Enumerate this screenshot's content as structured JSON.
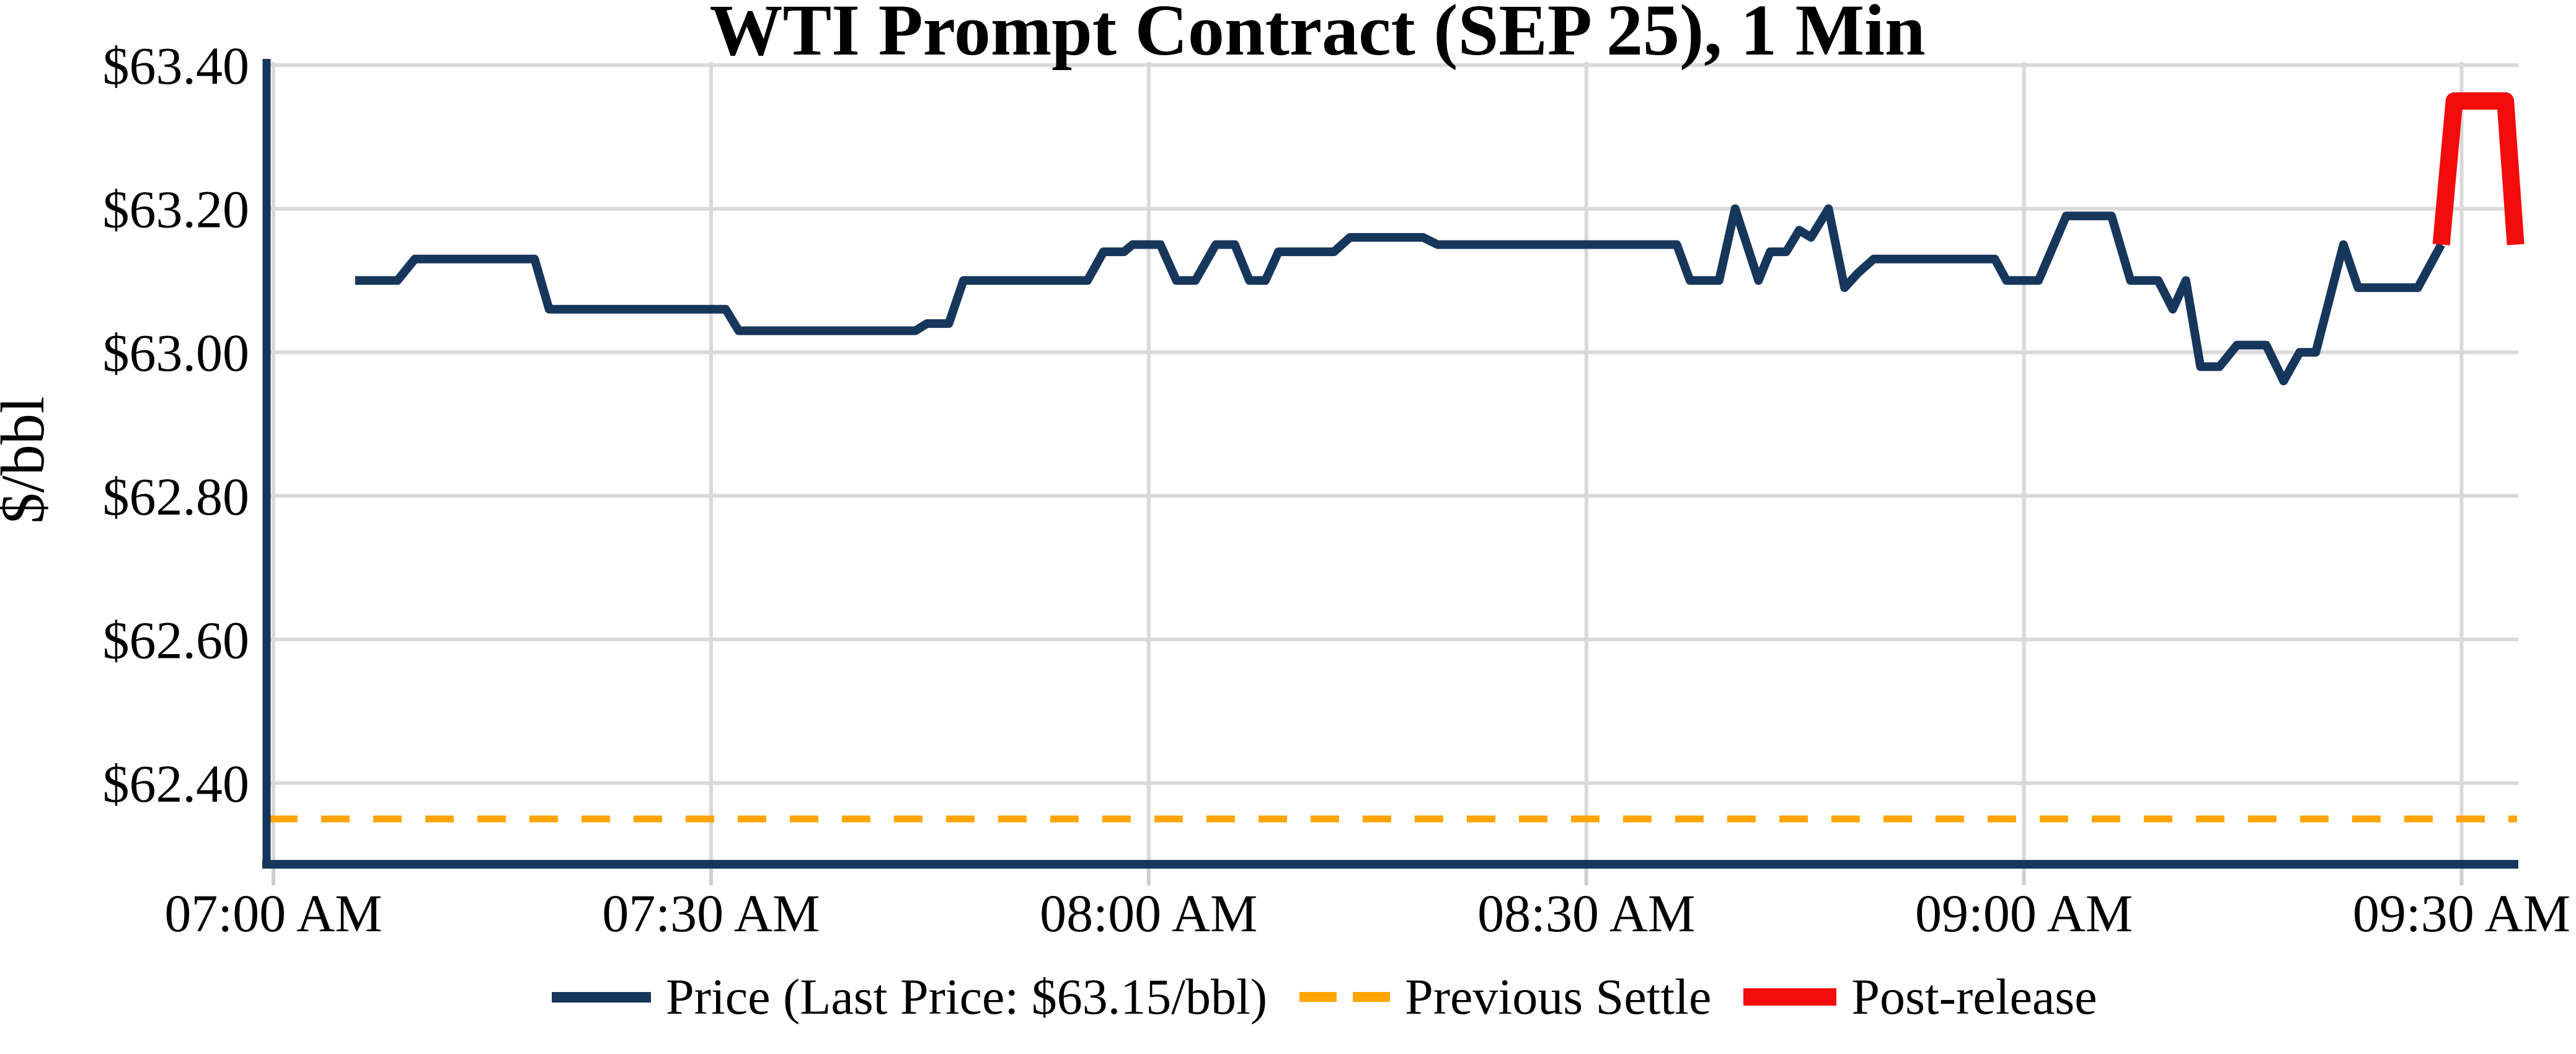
{
  "chart_data": {
    "type": "line",
    "title": "WTI Prompt Contract (SEP 25), 1 Min",
    "xlabel": "",
    "ylabel": "$/bbl",
    "grid": true,
    "legend_position": "bottom",
    "background_color": "#FFFFFF",
    "grid_color": "#D9D9D9",
    "tick_color": "#CFCFCF",
    "axis_color": "#17365C",
    "text_color": "#000000",
    "x_axis": {
      "unit": "minutes after 07:00 AM",
      "min": -0.5,
      "max": 153.9,
      "ticks": [
        {
          "minutes": 0,
          "label": "07:00 AM"
        },
        {
          "minutes": 30,
          "label": "07:30 AM"
        },
        {
          "minutes": 60,
          "label": "08:00 AM"
        },
        {
          "minutes": 90,
          "label": "08:30 AM"
        },
        {
          "minutes": 120,
          "label": "09:00 AM"
        },
        {
          "minutes": 150,
          "label": "09:30 AM"
        }
      ]
    },
    "y_axis": {
      "unit": "$/bbl",
      "min": 62.29,
      "max": 63.41,
      "ticks": [
        {
          "value": 63.4,
          "label": "$63.40"
        },
        {
          "value": 63.2,
          "label": "$63.20"
        },
        {
          "value": 63.0,
          "label": "$63.00"
        },
        {
          "value": 62.8,
          "label": "$62.80"
        },
        {
          "value": 62.6,
          "label": "$62.60"
        },
        {
          "value": 62.4,
          "label": "$62.40"
        }
      ]
    },
    "last_price": "$63.15/bbl",
    "previous_settle_value": 62.35,
    "series": [
      {
        "name": "Price (Last Price: $63.15/bbl)",
        "style": "solid",
        "color": "#17365C",
        "stroke_width": 14,
        "points": [
          [
            5.6,
            63.1
          ],
          [
            8.5,
            63.1
          ],
          [
            9.7,
            63.13
          ],
          [
            17.9,
            63.13
          ],
          [
            18.9,
            63.06
          ],
          [
            31.0,
            63.06
          ],
          [
            31.9,
            63.03
          ],
          [
            44.0,
            63.03
          ],
          [
            44.8,
            63.04
          ],
          [
            46.3,
            63.04
          ],
          [
            47.3,
            63.1
          ],
          [
            55.8,
            63.1
          ],
          [
            56.9,
            63.14
          ],
          [
            58.3,
            63.14
          ],
          [
            58.9,
            63.15
          ],
          [
            60.8,
            63.15
          ],
          [
            61.9,
            63.1
          ],
          [
            63.2,
            63.1
          ],
          [
            64.6,
            63.15
          ],
          [
            65.9,
            63.15
          ],
          [
            66.9,
            63.1
          ],
          [
            68.0,
            63.1
          ],
          [
            68.9,
            63.14
          ],
          [
            72.7,
            63.14
          ],
          [
            73.8,
            63.16
          ],
          [
            78.8,
            63.16
          ],
          [
            79.8,
            63.15
          ],
          [
            96.2,
            63.15
          ],
          [
            97.1,
            63.1
          ],
          [
            99.1,
            63.1
          ],
          [
            100.2,
            63.2
          ],
          [
            101.8,
            63.1
          ],
          [
            102.6,
            63.14
          ],
          [
            103.7,
            63.14
          ],
          [
            104.6,
            63.17
          ],
          [
            105.4,
            63.16
          ],
          [
            106.6,
            63.2
          ],
          [
            107.7,
            63.09
          ],
          [
            108.6,
            63.11
          ],
          [
            109.7,
            63.13
          ],
          [
            118.0,
            63.13
          ],
          [
            118.8,
            63.1
          ],
          [
            121.0,
            63.1
          ],
          [
            122.9,
            63.19
          ],
          [
            126.0,
            63.19
          ],
          [
            127.3,
            63.1
          ],
          [
            129.2,
            63.1
          ],
          [
            130.2,
            63.06
          ],
          [
            131.1,
            63.1
          ],
          [
            132.1,
            62.98
          ],
          [
            133.4,
            62.98
          ],
          [
            134.6,
            63.01
          ],
          [
            136.6,
            63.01
          ],
          [
            137.8,
            62.96
          ],
          [
            138.9,
            63.0
          ],
          [
            140.0,
            63.0
          ],
          [
            141.9,
            63.15
          ],
          [
            142.9,
            63.09
          ],
          [
            147.0,
            63.09
          ],
          [
            148.6,
            63.15
          ]
        ]
      },
      {
        "name": "Previous Settle",
        "style": "dashed",
        "color": "#FFA500",
        "stroke_width": 11,
        "points": [
          [
            -0.3,
            62.35
          ],
          [
            153.8,
            62.35
          ]
        ]
      },
      {
        "name": "Post-release",
        "style": "solid",
        "color": "#F40B0B",
        "stroke_width": 28,
        "points": [
          [
            148.6,
            63.15
          ],
          [
            149.5,
            63.35
          ],
          [
            153.0,
            63.35
          ],
          [
            153.7,
            63.15
          ]
        ]
      }
    ]
  }
}
